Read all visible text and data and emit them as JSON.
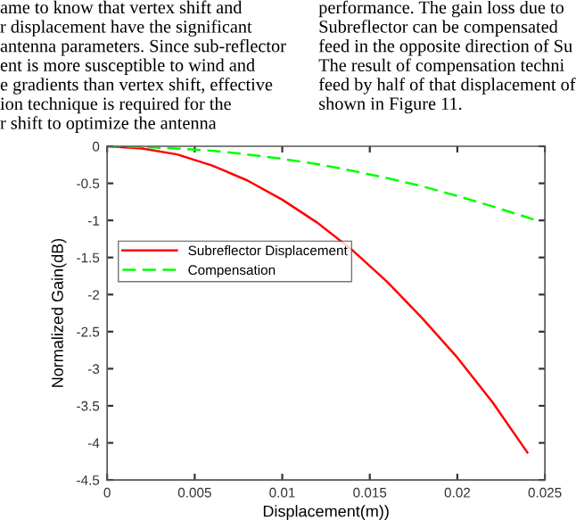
{
  "chart_data": {
    "type": "line",
    "xlabel": "Displacement(m))",
    "ylabel": "Normalized Gain(dB)",
    "xlim": [
      0,
      0.025
    ],
    "xticks": [
      0,
      0.005,
      0.01,
      0.015,
      0.02,
      0.025
    ],
    "ylim": [
      -4.5,
      0
    ],
    "yticks": [
      -4.5,
      -4,
      -3.5,
      -3,
      -2.5,
      -2,
      -1.5,
      -1,
      -0.5,
      0
    ],
    "grid": false,
    "legend": "left",
    "series": [
      {
        "name": "Subreflector Displacement",
        "color": "#ff0000",
        "line_style": "solid",
        "x": [
          0,
          0.002,
          0.004,
          0.006,
          0.008,
          0.01,
          0.012,
          0.014,
          0.016,
          0.018,
          0.02,
          0.022,
          0.024
        ],
        "values": [
          0,
          -0.03,
          -0.11,
          -0.26,
          -0.46,
          -0.72,
          -1.03,
          -1.4,
          -1.83,
          -2.32,
          -2.85,
          -3.45,
          -4.13
        ]
      },
      {
        "name": "Compensation",
        "color": "#00ff00",
        "line_style": "dashed",
        "x": [
          0,
          0.002,
          0.004,
          0.006,
          0.008,
          0.01,
          0.012,
          0.014,
          0.016,
          0.018,
          0.02,
          0.022,
          0.024,
          0.0245
        ],
        "values": [
          0,
          -0.01,
          -0.03,
          -0.06,
          -0.11,
          -0.17,
          -0.24,
          -0.33,
          -0.43,
          -0.54,
          -0.67,
          -0.81,
          -0.96,
          -1.0
        ]
      }
    ],
    "annotations": [
      "ame to know that vertex shift and",
      "r displacement have the significant",
      "antenna parameters. Since sub-reflector",
      "ent is more susceptible to wind and",
      "e gradients than vertex shift, effective",
      "ion technique is required for the",
      "r shift to optimize the antenna",
      "performance. The gain loss due to",
      "Subreflector can be compensated",
      "feed in the opposite direction of Su",
      "The result of compensation techni",
      "feed by half of that displacement of",
      "shown in Figure 11."
    ]
  }
}
